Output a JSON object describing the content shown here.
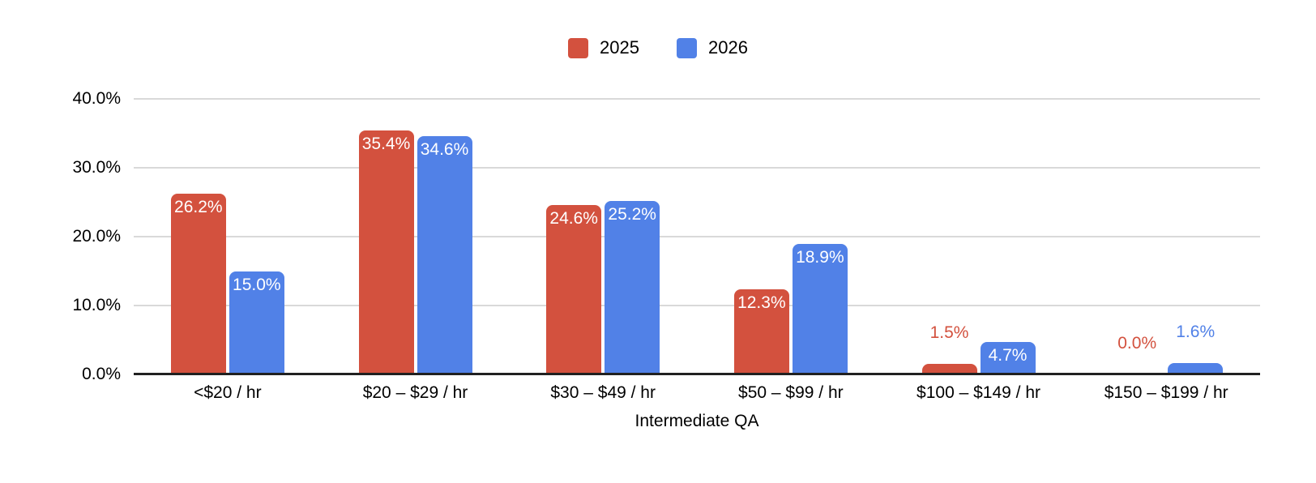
{
  "chart_data": {
    "type": "bar",
    "title": "",
    "xlabel": "Intermediate QA",
    "ylabel": "",
    "categories": [
      "<$20 / hr",
      "$20 – $29 / hr",
      "$30 – $49 / hr",
      "$50 – $99 / hr",
      "$100 – $149 / hr",
      "$150 – $199 / hr"
    ],
    "series": [
      {
        "name": "2025",
        "color": "#d3513e",
        "values": [
          26.2,
          35.4,
          24.6,
          12.3,
          1.5,
          0.0
        ],
        "labels": [
          "26.2%",
          "35.4%",
          "24.6%",
          "12.3%",
          "1.5%",
          "0.0%"
        ]
      },
      {
        "name": "2026",
        "color": "#5181e7",
        "values": [
          15.0,
          34.6,
          25.2,
          18.9,
          4.7,
          1.6
        ],
        "labels": [
          "15.0%",
          "34.6%",
          "25.2%",
          "18.9%",
          "4.7%",
          "1.6%"
        ]
      }
    ],
    "ylim": [
      0,
      40
    ],
    "yticks": [
      "0.0%",
      "10.0%",
      "20.0%",
      "30.0%",
      "40.0%"
    ],
    "grid": true,
    "legend_position": "top-center",
    "colors": {
      "gridline": "#d9d9d9",
      "axis_line": "#212121",
      "label_inside": "#ffffff"
    }
  }
}
